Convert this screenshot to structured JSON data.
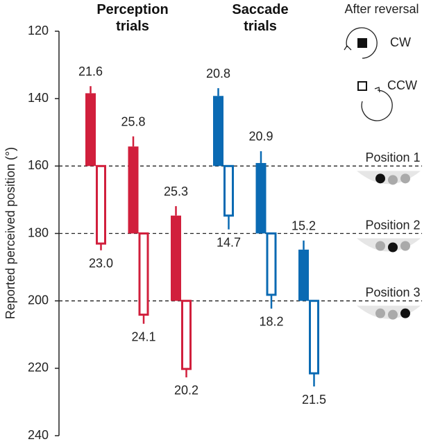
{
  "chart_data": {
    "type": "bar",
    "y_label": "Reported perceived position (°)",
    "ylim": [
      120,
      240
    ],
    "y_inverted": true,
    "yticks": [
      120,
      140,
      160,
      180,
      200,
      220,
      240
    ],
    "categories": [
      "Position 1",
      "Position 2",
      "Position 3"
    ],
    "reference_lines": [
      160,
      180,
      200
    ],
    "legend": {
      "title": "After reversal",
      "position": "top-right",
      "entries": [
        {
          "name": "CW",
          "filled": true
        },
        {
          "name": "CCW",
          "filled": false
        }
      ]
    },
    "groups": [
      {
        "title": "Perception trials",
        "color": "#d11f3c",
        "series": [
          {
            "filled": true,
            "direction": "up",
            "values": [
              21.6,
              25.8,
              25.3
            ],
            "errors": [
              2.1,
              3.0,
              2.8
            ]
          },
          {
            "filled": false,
            "direction": "down",
            "values": [
              23.0,
              24.1,
              20.2
            ],
            "value_labels": [
              "23.0",
              "24.1",
              "20.2"
            ],
            "errors": [
              2.0,
              2.7,
              2.5
            ]
          }
        ]
      },
      {
        "title": "Saccade trials",
        "color": "#0a6ab3",
        "series": [
          {
            "filled": true,
            "direction": "up",
            "values": [
              20.8,
              20.9,
              15.2
            ],
            "errors": [
              2.3,
              3.5,
              2.7
            ]
          },
          {
            "filled": false,
            "direction": "down",
            "values": [
              14.7,
              18.2,
              21.5
            ],
            "errors": [
              4.1,
              4.1,
              3.9
            ]
          }
        ]
      }
    ]
  }
}
